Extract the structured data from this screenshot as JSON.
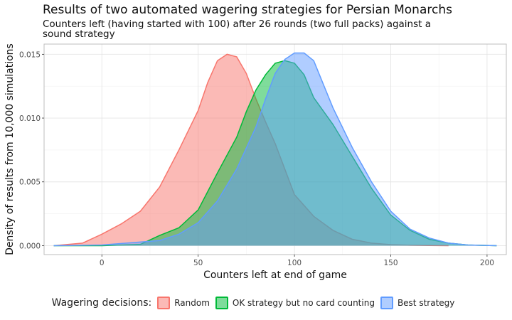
{
  "chart_data": {
    "type": "area",
    "title": "Results of two automated wagering strategies for Persian Monarchs",
    "subtitle": "Counters left (having started with 100) after 26 rounds (two full packs) against a sound strategy",
    "xlabel": "Counters left at end of game",
    "ylabel": "Density of results from 10,000 simulations",
    "xlim": [
      -30,
      210
    ],
    "ylim": [
      -0.0007,
      0.0158
    ],
    "xticks": [
      "0",
      "50",
      "100",
      "150",
      "200"
    ],
    "xtick_values": [
      0,
      50,
      100,
      150,
      200
    ],
    "yticks": [
      "0.000",
      "0.005",
      "0.010",
      "0.015"
    ],
    "ytick_values": [
      0.0,
      0.005,
      0.01,
      0.015
    ],
    "grid": true,
    "legend_title": "Wagering decisions:",
    "legend_position": "bottom",
    "series": [
      {
        "name": "Random",
        "fill": "#F8766D",
        "stroke": "#F8766D",
        "x": [
          -25,
          -10,
          0,
          10,
          20,
          30,
          40,
          50,
          55,
          60,
          65,
          70,
          75,
          80,
          85,
          90,
          95,
          100,
          110,
          120,
          130,
          140,
          150,
          160,
          170,
          180
        ],
        "y": [
          0.0,
          0.0002,
          0.0009,
          0.0017,
          0.0027,
          0.0046,
          0.0075,
          0.0106,
          0.0128,
          0.0145,
          0.015,
          0.0148,
          0.0135,
          0.0115,
          0.0097,
          0.008,
          0.006,
          0.004,
          0.0023,
          0.0012,
          0.0005,
          0.0002,
          8e-05,
          3e-05,
          1e-05,
          0.0
        ]
      },
      {
        "name": "OK strategy but no card counting",
        "fill": "#00BA38",
        "stroke": "#00BA38",
        "x": [
          -25,
          0,
          20,
          30,
          40,
          50,
          60,
          70,
          75,
          80,
          85,
          90,
          95,
          100,
          105,
          110,
          120,
          130,
          140,
          150,
          160,
          170,
          180,
          190,
          205
        ],
        "y": [
          0.0,
          0.0,
          0.0001,
          0.0008,
          0.0014,
          0.0028,
          0.0057,
          0.0085,
          0.0105,
          0.0122,
          0.0134,
          0.0143,
          0.0145,
          0.0143,
          0.0134,
          0.0116,
          0.0095,
          0.007,
          0.0045,
          0.0024,
          0.0012,
          0.0005,
          0.0002,
          5e-05,
          0.0
        ]
      },
      {
        "name": "Best strategy",
        "fill": "#619CFF",
        "stroke": "#619CFF",
        "x": [
          -25,
          0,
          30,
          40,
          50,
          60,
          70,
          80,
          85,
          90,
          95,
          100,
          105,
          110,
          120,
          130,
          140,
          150,
          160,
          170,
          180,
          190,
          205
        ],
        "y": [
          0.0,
          5e-05,
          0.0004,
          0.0009,
          0.0018,
          0.0035,
          0.006,
          0.0093,
          0.0115,
          0.0135,
          0.0146,
          0.0151,
          0.0151,
          0.0145,
          0.0108,
          0.0077,
          0.005,
          0.0027,
          0.0013,
          0.0006,
          0.0002,
          5e-05,
          0.0
        ]
      }
    ]
  }
}
